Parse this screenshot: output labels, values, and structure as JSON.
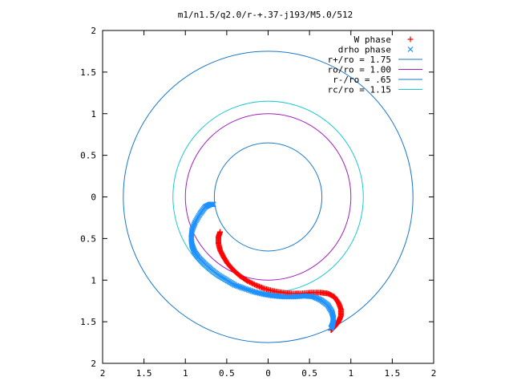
{
  "chart_data": {
    "type": "scatter",
    "title": "m1/n1.5/q2.0/r-+.37-j193/M5.0/512",
    "xlim": [
      -2,
      2
    ],
    "ylim": [
      -2,
      2
    ],
    "x_ticks": [
      -2,
      -1.5,
      -1,
      -0.5,
      0,
      0.5,
      1,
      1.5,
      2
    ],
    "y_ticks": [
      -2,
      -1.5,
      -1,
      -0.5,
      0,
      0.5,
      1,
      1.5,
      2
    ],
    "x_tick_labels": [
      "2",
      "1.5",
      "1",
      "0.5",
      "0",
      "0.5",
      "1",
      "1.5",
      "2"
    ],
    "y_tick_labels": [
      "2",
      "1.5",
      "1",
      "0.5",
      "0",
      "0.5",
      "1",
      "1.5",
      "2"
    ],
    "grid": false,
    "legend_position": "top-right",
    "legend": [
      {
        "label": "W phase",
        "kind": "points",
        "marker": "+",
        "color": "#ff0000"
      },
      {
        "label": "drho phase",
        "kind": "points",
        "marker": "x",
        "color": "#1e90ff"
      },
      {
        "label": "r+/ro = 1.75",
        "kind": "circle",
        "radius": 1.75,
        "color": "#1a78c8"
      },
      {
        "label": "ro/ro = 1.00",
        "kind": "circle",
        "radius": 1.0,
        "color": "#a020c0"
      },
      {
        "label": "r-/ro = .65",
        "kind": "circle",
        "radius": 0.65,
        "color": "#1a78c8"
      },
      {
        "label": "rc/ro = 1.15",
        "kind": "circle",
        "radius": 1.15,
        "color": "#20c8d0"
      }
    ],
    "series": [
      {
        "name": "W phase",
        "marker": "+",
        "color": "#ff0000",
        "x": [
          -0.58,
          -0.6,
          -0.6,
          -0.58,
          -0.54,
          -0.49,
          -0.42,
          -0.34,
          -0.25,
          -0.15,
          -0.05,
          0.06,
          0.17,
          0.28,
          0.4,
          0.52,
          0.63,
          0.72,
          0.8,
          0.85,
          0.88,
          0.88,
          0.85,
          0.81,
          0.78,
          0.76
        ],
        "y": [
          -0.42,
          -0.48,
          -0.56,
          -0.64,
          -0.72,
          -0.8,
          -0.88,
          -0.95,
          -1.01,
          -1.06,
          -1.1,
          -1.13,
          -1.15,
          -1.16,
          -1.16,
          -1.15,
          -1.15,
          -1.16,
          -1.2,
          -1.27,
          -1.35,
          -1.43,
          -1.5,
          -1.55,
          -1.58,
          -1.6
        ]
      },
      {
        "name": "drho phase",
        "marker": "x",
        "color": "#1e90ff",
        "x": [
          -0.66,
          -0.7,
          -0.76,
          -0.82,
          -0.88,
          -0.92,
          -0.93,
          -0.92,
          -0.89,
          -0.84,
          -0.77,
          -0.69,
          -0.6,
          -0.5,
          -0.4,
          -0.29,
          -0.17,
          -0.05,
          0.07,
          0.2,
          0.32,
          0.44,
          0.55,
          0.64,
          0.72,
          0.77,
          0.79,
          0.78,
          0.76
        ],
        "y": [
          -0.09,
          -0.09,
          -0.12,
          -0.2,
          -0.3,
          -0.4,
          -0.5,
          -0.58,
          -0.66,
          -0.73,
          -0.8,
          -0.87,
          -0.94,
          -1.0,
          -1.06,
          -1.1,
          -1.14,
          -1.17,
          -1.19,
          -1.2,
          -1.2,
          -1.19,
          -1.2,
          -1.24,
          -1.3,
          -1.38,
          -1.46,
          -1.53,
          -1.58
        ]
      }
    ]
  }
}
